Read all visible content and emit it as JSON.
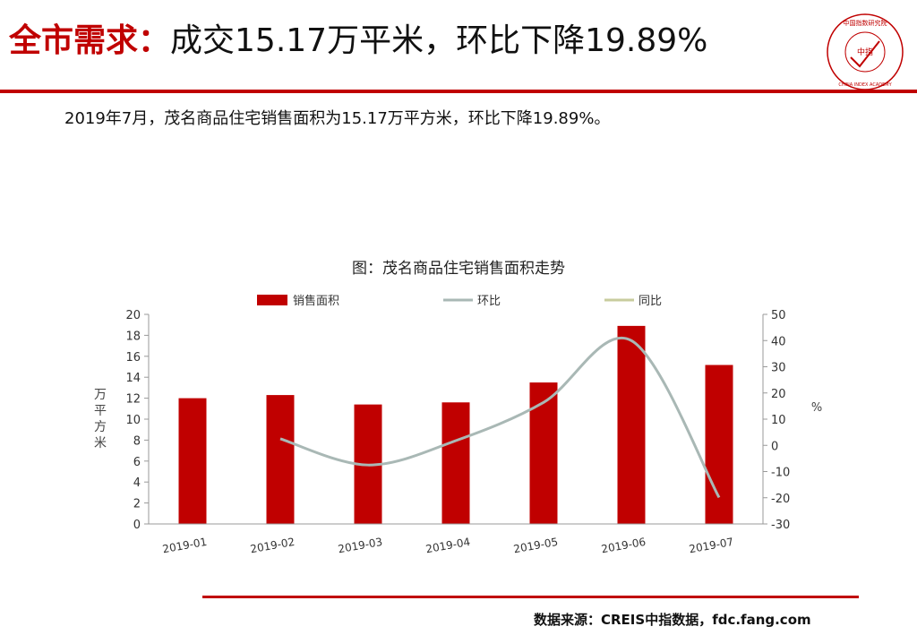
{
  "header": {
    "title_lead": "全市需求：",
    "title_rest": "成交15.17万平米，环比下降19.89%",
    "seal_text": "中国指数研究院",
    "seal_center": "中指",
    "seal_en": "CHINA INDEX ACADEMY"
  },
  "summary": "2019年7月，茂名商品住宅销售面积为15.17万平方米，环比下降19.89%。",
  "source": "数据来源：CREIS中指数据，fdc.fang.com",
  "colors": {
    "brand": "#c00000",
    "bar": "#c00000",
    "mom_line": "#a9b8b5",
    "yoy_line": "#c8cc9e"
  },
  "chart_data": {
    "type": "bar",
    "title": "图：茂名商品住宅销售面积走势",
    "categories": [
      "2019-01",
      "2019-02",
      "2019-03",
      "2019-04",
      "2019-05",
      "2019-06",
      "2019-07"
    ],
    "series": [
      {
        "name": "销售面积",
        "type": "bar",
        "axis": "left",
        "values": [
          12.0,
          12.3,
          11.4,
          11.6,
          13.5,
          18.9,
          15.17
        ]
      },
      {
        "name": "环比",
        "type": "line",
        "axis": "right",
        "smooth": true,
        "values": [
          null,
          2.5,
          -7.5,
          1.8,
          16.4,
          40.0,
          -19.89
        ]
      },
      {
        "name": "同比",
        "type": "line",
        "axis": "right",
        "values": [
          null,
          null,
          null,
          null,
          null,
          null,
          null
        ]
      }
    ],
    "ylabel": "万平方米",
    "ylabel_right": "%",
    "ylim": [
      0,
      20
    ],
    "yticks": [
      0,
      2,
      4,
      6,
      8,
      10,
      12,
      14,
      16,
      18,
      20
    ],
    "ylim_right": [
      -30,
      50
    ],
    "yticks_right": [
      -30,
      -20,
      -10,
      0,
      10,
      20,
      30,
      40,
      50
    ],
    "legend_position": "top",
    "grid": false
  }
}
